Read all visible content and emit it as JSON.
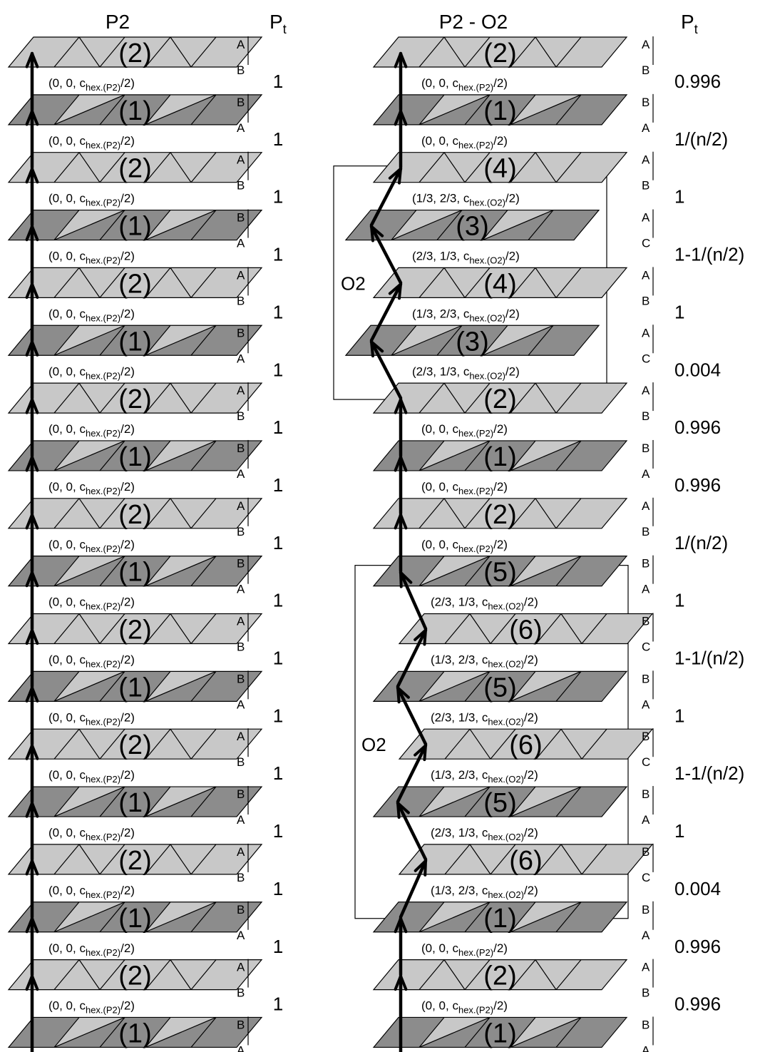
{
  "colors": {
    "light": "#c8c8c8",
    "dark": "#8c8c8c",
    "stroke": "#000000"
  },
  "left": {
    "title": "P2",
    "pt_header": {
      "base": "P",
      "sub": "t"
    },
    "layers": [
      "2",
      "1",
      "2",
      "1",
      "2",
      "1",
      "2",
      "1",
      "2",
      "1",
      "2",
      "1",
      "2",
      "1",
      "2",
      "1",
      "2",
      "1"
    ],
    "stacking": [
      [
        "A",
        "B"
      ],
      [
        "B",
        "A"
      ],
      [
        "A",
        "B"
      ],
      [
        "B",
        "A"
      ],
      [
        "A",
        "B"
      ],
      [
        "B",
        "A"
      ],
      [
        "A",
        "B"
      ],
      [
        "B",
        "A"
      ],
      [
        "A",
        "B"
      ],
      [
        "B",
        "A"
      ],
      [
        "A",
        "B"
      ],
      [
        "B",
        "A"
      ],
      [
        "A",
        "B"
      ],
      [
        "B",
        "A"
      ],
      [
        "A",
        "B"
      ],
      [
        "B",
        "A"
      ],
      [
        "A",
        "B"
      ],
      [
        "B",
        "A"
      ]
    ],
    "vectors": [
      {
        "pre": "(0, 0, c",
        "sub": "hex.(P2)",
        "post": "/2)"
      },
      {
        "pre": "(0, 0, c",
        "sub": "hex.(P2)",
        "post": "/2)"
      },
      {
        "pre": "(0, 0, c",
        "sub": "hex.(P2)",
        "post": "/2)"
      },
      {
        "pre": "(0, 0, c",
        "sub": "hex.(P2)",
        "post": "/2)"
      },
      {
        "pre": "(0, 0, c",
        "sub": "hex.(P2)",
        "post": "/2)"
      },
      {
        "pre": "(0, 0, c",
        "sub": "hex.(P2)",
        "post": "/2)"
      },
      {
        "pre": "(0, 0, c",
        "sub": "hex.(P2)",
        "post": "/2)"
      },
      {
        "pre": "(0, 0, c",
        "sub": "hex.(P2)",
        "post": "/2)"
      },
      {
        "pre": "(0, 0, c",
        "sub": "hex.(P2)",
        "post": "/2)"
      },
      {
        "pre": "(0, 0, c",
        "sub": "hex.(P2)",
        "post": "/2)"
      },
      {
        "pre": "(0, 0, c",
        "sub": "hex.(P2)",
        "post": "/2)"
      },
      {
        "pre": "(0, 0, c",
        "sub": "hex.(P2)",
        "post": "/2)"
      },
      {
        "pre": "(0, 0, c",
        "sub": "hex.(P2)",
        "post": "/2)"
      },
      {
        "pre": "(0, 0, c",
        "sub": "hex.(P2)",
        "post": "/2)"
      },
      {
        "pre": "(0, 0, c",
        "sub": "hex.(P2)",
        "post": "/2)"
      },
      {
        "pre": "(0, 0, c",
        "sub": "hex.(P2)",
        "post": "/2)"
      },
      {
        "pre": "(0, 0, c",
        "sub": "hex.(P2)",
        "post": "/2)"
      }
    ],
    "pt_values": [
      "1",
      "1",
      "1",
      "1",
      "1",
      "1",
      "1",
      "1",
      "1",
      "1",
      "1",
      "1",
      "1",
      "1",
      "1",
      "1",
      "1"
    ]
  },
  "right": {
    "title": "P2 - O2",
    "pt_header": {
      "base": "P",
      "sub": "t"
    },
    "box_label": "O2",
    "layers": [
      "2",
      "1",
      "4",
      "3",
      "4",
      "3",
      "2",
      "1",
      "2",
      "5",
      "6",
      "5",
      "6",
      "5",
      "6",
      "1",
      "2",
      "1"
    ],
    "stacking": [
      [
        "A",
        "B"
      ],
      [
        "B",
        "A"
      ],
      [
        "A",
        "B"
      ],
      [
        "A",
        "C"
      ],
      [
        "A",
        "B"
      ],
      [
        "A",
        "C"
      ],
      [
        "A",
        "B"
      ],
      [
        "B",
        "A"
      ],
      [
        "A",
        "B"
      ],
      [
        "B",
        "A"
      ],
      [
        "B",
        "C"
      ],
      [
        "B",
        "A"
      ],
      [
        "B",
        "C"
      ],
      [
        "B",
        "A"
      ],
      [
        "B",
        "C"
      ],
      [
        "B",
        "A"
      ],
      [
        "A",
        "B"
      ],
      [
        "B",
        "A"
      ]
    ],
    "vectors": [
      {
        "pre": "(0, 0, c",
        "sub": "hex.(P2)",
        "post": "/2)"
      },
      {
        "pre": "(0, 0, c",
        "sub": "hex.(P2)",
        "post": "/2)"
      },
      {
        "pre": "(1/3, 2/3, c",
        "sub": "hex.(O2)",
        "post": "/2)"
      },
      {
        "pre": "(2/3, 1/3, c",
        "sub": "hex.(O2)",
        "post": "/2)"
      },
      {
        "pre": "(1/3, 2/3, c",
        "sub": "hex.(O2)",
        "post": "/2)"
      },
      {
        "pre": "(2/3, 1/3, c",
        "sub": "hex.(O2)",
        "post": "/2)"
      },
      {
        "pre": "(0, 0, c",
        "sub": "hex.(P2)",
        "post": "/2)"
      },
      {
        "pre": "(0, 0, c",
        "sub": "hex.(P2)",
        "post": "/2)"
      },
      {
        "pre": "(0, 0, c",
        "sub": "hex.(P2)",
        "post": "/2)"
      },
      {
        "pre": "(2/3, 1/3, c",
        "sub": "hex.(O2)",
        "post": "/2)"
      },
      {
        "pre": "(1/3, 2/3, c",
        "sub": "hex.(O2)",
        "post": "/2)"
      },
      {
        "pre": "(2/3, 1/3, c",
        "sub": "hex.(O2)",
        "post": "/2)"
      },
      {
        "pre": "(1/3, 2/3, c",
        "sub": "hex.(O2)",
        "post": "/2)"
      },
      {
        "pre": "(2/3, 1/3, c",
        "sub": "hex.(O2)",
        "post": "/2)"
      },
      {
        "pre": "(1/3, 2/3, c",
        "sub": "hex.(O2)",
        "post": "/2)"
      },
      {
        "pre": "(0, 0, c",
        "sub": "hex.(P2)",
        "post": "/2)"
      },
      {
        "pre": "(0, 0, c",
        "sub": "hex.(P2)",
        "post": "/2)"
      }
    ],
    "pt_values": [
      "0.996",
      "1/(n/2)",
      "1",
      "1-1/(n/2)",
      "1",
      "0.004",
      "0.996",
      "0.996",
      "1/(n/2)",
      "1",
      "1-1/(n/2)",
      "1",
      "1-1/(n/2)",
      "1",
      "0.004",
      "0.996",
      "0.996"
    ]
  }
}
